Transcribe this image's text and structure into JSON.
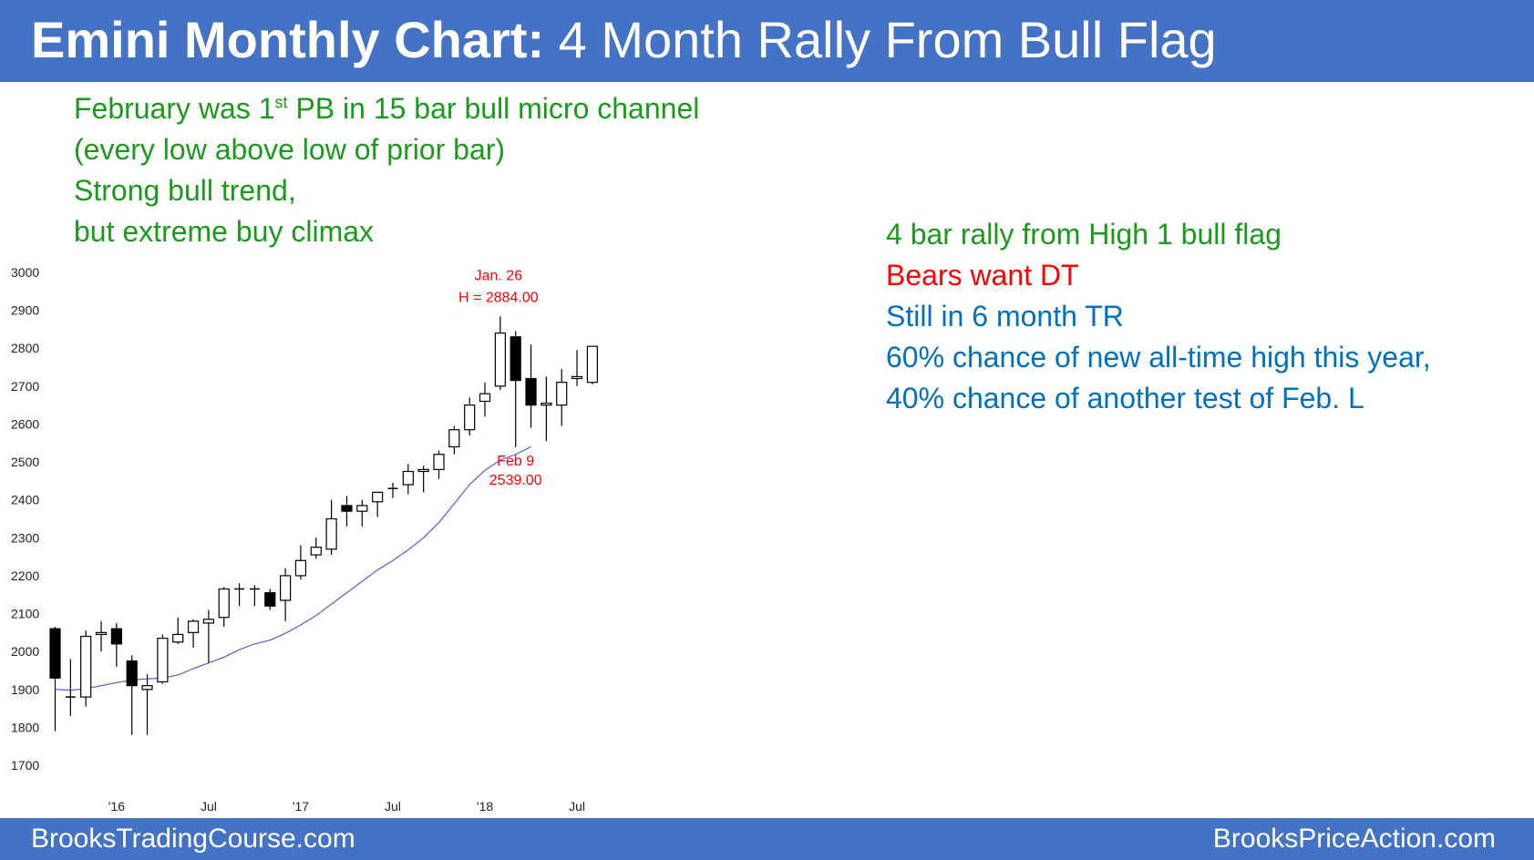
{
  "header": {
    "title_bold": "Emini Monthly Chart:",
    "title_rest": "4 Month Rally From Bull Flag"
  },
  "footer": {
    "left": "BrooksTradingCourse.com",
    "right": "BrooksPriceAction.com"
  },
  "left_notes": {
    "line1_a": "February was 1",
    "line1_sup": "st",
    "line1_b": " PB in 15 bar bull micro channel",
    "line2": "(every low above low of prior bar)",
    "line3": "Strong bull trend,",
    "line4": "but extreme buy climax"
  },
  "right_notes": {
    "line1": "4 bar rally from High 1 bull flag",
    "line2": "Bears want DT",
    "line3": "Still in 6 month TR",
    "line4": "60% chance of new all-time high this year,",
    "line5": "40% chance of another test of Feb. L"
  },
  "colors": {
    "banner": "#4472c4",
    "green": "#1a9a1a",
    "red": "#ff0000",
    "blue": "#0070c0",
    "ma": "#5b5bd6"
  },
  "chart_data": {
    "type": "candlestick",
    "ylim": [
      1700,
      3000
    ],
    "y_ticks": [
      "1700",
      "1800",
      "1900",
      "2000",
      "2100",
      "2200",
      "2300",
      "2400",
      "2500",
      "2600",
      "2700",
      "2800",
      "2900",
      "3000"
    ],
    "x_ticks": [
      {
        "label": "'16",
        "index": 4
      },
      {
        "label": "Jul",
        "index": 10
      },
      {
        "label": "'17",
        "index": 16
      },
      {
        "label": "Jul",
        "index": 22
      },
      {
        "label": "'18",
        "index": 28
      },
      {
        "label": "Jul",
        "index": 34
      }
    ],
    "candles": [
      {
        "o": 2060,
        "h": 2065,
        "l": 1790,
        "c": 1930
      },
      {
        "o": 1880,
        "h": 1980,
        "l": 1830,
        "c": 1880
      },
      {
        "o": 1880,
        "h": 2055,
        "l": 1855,
        "c": 2040
      },
      {
        "o": 2045,
        "h": 2080,
        "l": 2000,
        "c": 2050
      },
      {
        "o": 2060,
        "h": 2075,
        "l": 1960,
        "c": 2020
      },
      {
        "o": 1975,
        "h": 1990,
        "l": 1780,
        "c": 1910
      },
      {
        "o": 1900,
        "h": 1940,
        "l": 1780,
        "c": 1910
      },
      {
        "o": 1920,
        "h": 2045,
        "l": 1915,
        "c": 2035
      },
      {
        "o": 2025,
        "h": 2090,
        "l": 2020,
        "c": 2045
      },
      {
        "o": 2050,
        "h": 2085,
        "l": 2010,
        "c": 2080
      },
      {
        "o": 2075,
        "h": 2110,
        "l": 1970,
        "c": 2085
      },
      {
        "o": 2090,
        "h": 2170,
        "l": 2065,
        "c": 2165
      },
      {
        "o": 2165,
        "h": 2180,
        "l": 2120,
        "c": 2165
      },
      {
        "o": 2165,
        "h": 2175,
        "l": 2120,
        "c": 2165
      },
      {
        "o": 2155,
        "h": 2165,
        "l": 2110,
        "c": 2120
      },
      {
        "o": 2135,
        "h": 2220,
        "l": 2080,
        "c": 2200
      },
      {
        "o": 2200,
        "h": 2280,
        "l": 2190,
        "c": 2240
      },
      {
        "o": 2255,
        "h": 2300,
        "l": 2245,
        "c": 2275
      },
      {
        "o": 2270,
        "h": 2400,
        "l": 2255,
        "c": 2350
      },
      {
        "o": 2385,
        "h": 2410,
        "l": 2330,
        "c": 2370
      },
      {
        "o": 2370,
        "h": 2400,
        "l": 2330,
        "c": 2385
      },
      {
        "o": 2395,
        "h": 2420,
        "l": 2355,
        "c": 2420
      },
      {
        "o": 2430,
        "h": 2445,
        "l": 2405,
        "c": 2430
      },
      {
        "o": 2440,
        "h": 2495,
        "l": 2415,
        "c": 2475
      },
      {
        "o": 2475,
        "h": 2490,
        "l": 2420,
        "c": 2480
      },
      {
        "o": 2480,
        "h": 2530,
        "l": 2455,
        "c": 2520
      },
      {
        "o": 2540,
        "h": 2595,
        "l": 2520,
        "c": 2585
      },
      {
        "o": 2585,
        "h": 2670,
        "l": 2570,
        "c": 2650
      },
      {
        "o": 2660,
        "h": 2710,
        "l": 2620,
        "c": 2680
      },
      {
        "o": 2700,
        "h": 2884,
        "l": 2690,
        "c": 2840
      },
      {
        "o": 2830,
        "h": 2845,
        "l": 2539,
        "c": 2715
      },
      {
        "o": 2720,
        "h": 2810,
        "l": 2590,
        "c": 2650
      },
      {
        "o": 2650,
        "h": 2725,
        "l": 2555,
        "c": 2655
      },
      {
        "o": 2650,
        "h": 2745,
        "l": 2595,
        "c": 2710
      },
      {
        "o": 2720,
        "h": 2795,
        "l": 2700,
        "c": 2725
      },
      {
        "o": 2710,
        "h": 2800,
        "l": 2705,
        "c": 2805
      }
    ],
    "moving_average": [
      1900,
      1898,
      1902,
      1910,
      1918,
      1925,
      1928,
      1930,
      1938,
      1955,
      1970,
      1985,
      2005,
      2020,
      2030,
      2048,
      2070,
      2095,
      2125,
      2155,
      2185,
      2215,
      2240,
      2268,
      2300,
      2340,
      2390,
      2440,
      2478,
      2505,
      2520,
      2540
    ],
    "annotations": [
      {
        "line1": "Jan. 26",
        "line2": "H = 2884.00",
        "index": 29,
        "value": 2884
      },
      {
        "line1": "Feb 9",
        "line2": "2539.00",
        "index": 30,
        "value": 2539
      }
    ]
  }
}
